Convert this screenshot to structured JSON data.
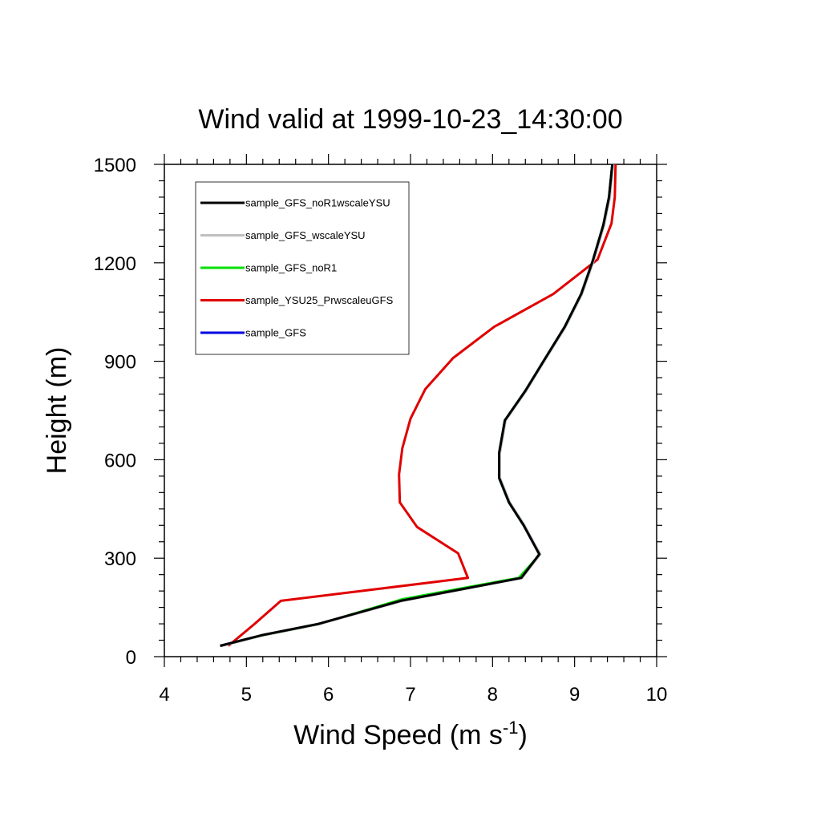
{
  "chart_data": {
    "type": "line",
    "title": "Wind valid at 1999-10-23_14:30:00",
    "xlabel": "Wind Speed (m s",
    "xlabel_sup": "-1",
    "xlabel_end": ")",
    "ylabel": "Height (m)",
    "xlim": [
      4,
      10
    ],
    "ylim": [
      0,
      1500
    ],
    "xticks": [
      4,
      5,
      6,
      7,
      8,
      9,
      10
    ],
    "yticks": [
      0,
      300,
      600,
      900,
      1200,
      1500
    ],
    "grid": false,
    "legend_position": "top-left",
    "series": [
      {
        "name": "sample_GFS_noR1wscaleYSU",
        "color": "#000000",
        "points": [
          [
            4.68,
            33
          ],
          [
            5.18,
            65
          ],
          [
            5.88,
            100
          ],
          [
            6.88,
            170
          ],
          [
            8.35,
            240
          ],
          [
            8.57,
            312
          ],
          [
            8.38,
            400
          ],
          [
            8.2,
            470
          ],
          [
            8.08,
            545
          ],
          [
            8.08,
            620
          ],
          [
            8.15,
            720
          ],
          [
            8.4,
            810
          ],
          [
            8.62,
            900
          ],
          [
            8.88,
            1005
          ],
          [
            9.08,
            1105
          ],
          [
            9.22,
            1205
          ],
          [
            9.35,
            1315
          ],
          [
            9.42,
            1400
          ],
          [
            9.46,
            1500
          ]
        ]
      },
      {
        "name": "sample_GFS_wscaleYSU",
        "color": "#bfbfbf",
        "points": [
          [
            4.7,
            33
          ],
          [
            5.2,
            65
          ],
          [
            5.9,
            100
          ],
          [
            6.9,
            170
          ],
          [
            8.36,
            240
          ],
          [
            8.58,
            312
          ],
          [
            8.39,
            400
          ],
          [
            8.21,
            470
          ],
          [
            8.09,
            545
          ],
          [
            8.09,
            620
          ],
          [
            8.16,
            720
          ],
          [
            8.41,
            810
          ],
          [
            8.63,
            900
          ],
          [
            8.89,
            1005
          ],
          [
            9.09,
            1105
          ],
          [
            9.23,
            1205
          ],
          [
            9.36,
            1315
          ],
          [
            9.43,
            1400
          ],
          [
            9.47,
            1500
          ]
        ]
      },
      {
        "name": "sample_GFS_noR1",
        "color": "#00e000",
        "points": [
          [
            4.69,
            33
          ],
          [
            5.2,
            65
          ],
          [
            5.9,
            100
          ],
          [
            6.9,
            175
          ],
          [
            8.32,
            240
          ],
          [
            8.58,
            312
          ],
          [
            8.38,
            400
          ],
          [
            8.2,
            470
          ],
          [
            8.08,
            545
          ],
          [
            8.08,
            620
          ],
          [
            8.15,
            720
          ],
          [
            8.4,
            810
          ],
          [
            8.62,
            900
          ],
          [
            8.88,
            1005
          ],
          [
            9.08,
            1105
          ],
          [
            9.22,
            1205
          ],
          [
            9.35,
            1315
          ],
          [
            9.42,
            1400
          ],
          [
            9.46,
            1500
          ]
        ]
      },
      {
        "name": "sample_YSU25_PrwscaleuGFS",
        "color": "#e00000",
        "points": [
          [
            4.78,
            33
          ],
          [
            5.1,
            100
          ],
          [
            5.42,
            170
          ],
          [
            7.7,
            240
          ],
          [
            7.58,
            315
          ],
          [
            7.08,
            395
          ],
          [
            6.87,
            470
          ],
          [
            6.86,
            555
          ],
          [
            6.9,
            635
          ],
          [
            7.0,
            725
          ],
          [
            7.18,
            815
          ],
          [
            7.52,
            910
          ],
          [
            8.02,
            1005
          ],
          [
            8.74,
            1105
          ],
          [
            9.28,
            1210
          ],
          [
            9.45,
            1320
          ],
          [
            9.49,
            1400
          ],
          [
            9.5,
            1500
          ]
        ]
      },
      {
        "name": "sample_GFS",
        "color": "#0000e0",
        "points": [
          [
            4.68,
            33
          ],
          [
            5.19,
            65
          ],
          [
            5.89,
            100
          ],
          [
            6.89,
            170
          ],
          [
            8.35,
            240
          ],
          [
            8.57,
            312
          ],
          [
            8.38,
            400
          ],
          [
            8.2,
            470
          ],
          [
            8.08,
            545
          ],
          [
            8.08,
            620
          ],
          [
            8.15,
            720
          ],
          [
            8.4,
            810
          ],
          [
            8.62,
            900
          ],
          [
            8.88,
            1005
          ],
          [
            9.08,
            1105
          ],
          [
            9.22,
            1205
          ],
          [
            9.35,
            1315
          ],
          [
            9.42,
            1400
          ],
          [
            9.46,
            1500
          ]
        ]
      }
    ],
    "draw_order": [
      4,
      3,
      2,
      1,
      0
    ]
  }
}
